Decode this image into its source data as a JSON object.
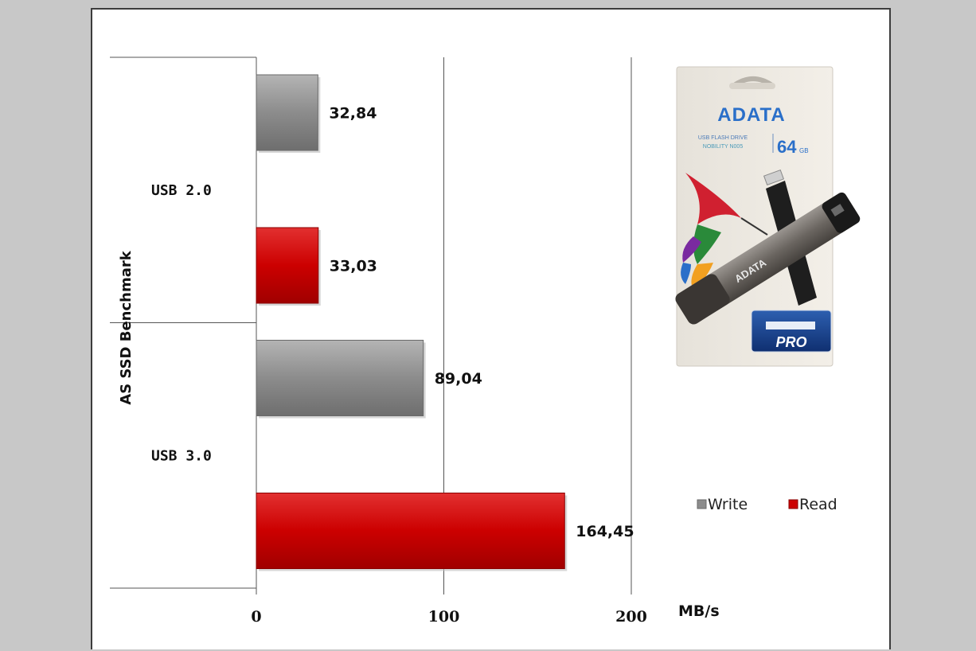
{
  "chart_data": {
    "type": "bar",
    "orientation": "horizontal",
    "title": "",
    "ylabel": "AS SSD Benchmark",
    "xlabel": "MB/s",
    "xlim": [
      0,
      200
    ],
    "x_ticks": [
      "0",
      "100",
      "200"
    ],
    "grid": true,
    "legend_position": "right",
    "categories": [
      "USB 2.0",
      "USB 3.0"
    ],
    "series": [
      {
        "name": "Write",
        "color": "#8c8c8c",
        "values": [
          32.84,
          89.04
        ],
        "labels": [
          "32,84",
          "89,04"
        ]
      },
      {
        "name": "Read",
        "color": "#cc0000",
        "values": [
          33.03,
          164.45
        ],
        "labels": [
          "33,03",
          "164,45"
        ]
      }
    ]
  },
  "product_image": {
    "brand": "ADATA",
    "box_line1": "USB FLASH DRIVE",
    "box_line2": "NOBILITY N005",
    "capacity": "64",
    "capacity_unit": "GB",
    "badge_text": "PRO",
    "drive_text": "ADATA"
  }
}
